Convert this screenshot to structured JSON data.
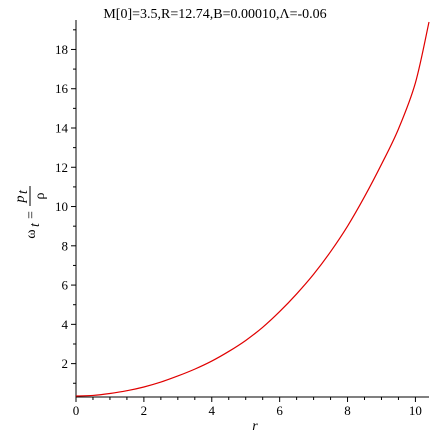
{
  "chart_data": {
    "type": "line",
    "title": "M[0]=3.5,R=12.74,B=0.00010,Λ=-0.06",
    "xlabel": "r",
    "ylabel": {
      "lhs": "ω",
      "lhs_sub": "t",
      "eq": "=",
      "num": "p",
      "num_sub": "t",
      "den": "ρ"
    },
    "xlim": [
      0,
      10.4
    ],
    "ylim": [
      0.3,
      19.5
    ],
    "xticks": [
      0,
      2,
      4,
      6,
      8,
      10
    ],
    "yticks": [
      2,
      4,
      6,
      8,
      10,
      12,
      14,
      16,
      18
    ],
    "series": [
      {
        "color": "#e00000",
        "x": [
          0,
          0.5,
          1,
          1.5,
          2,
          2.5,
          3,
          3.5,
          4,
          4.5,
          5,
          5.5,
          6,
          6.5,
          7,
          7.5,
          8,
          8.5,
          9,
          9.5,
          10,
          10.4
        ],
        "y": [
          0.35,
          0.38,
          0.48,
          0.62,
          0.81,
          1.06,
          1.37,
          1.72,
          2.13,
          2.62,
          3.18,
          3.85,
          4.65,
          5.55,
          6.55,
          7.7,
          9.0,
          10.5,
          12.15,
          13.95,
          16.3,
          19.4
        ]
      }
    ]
  }
}
